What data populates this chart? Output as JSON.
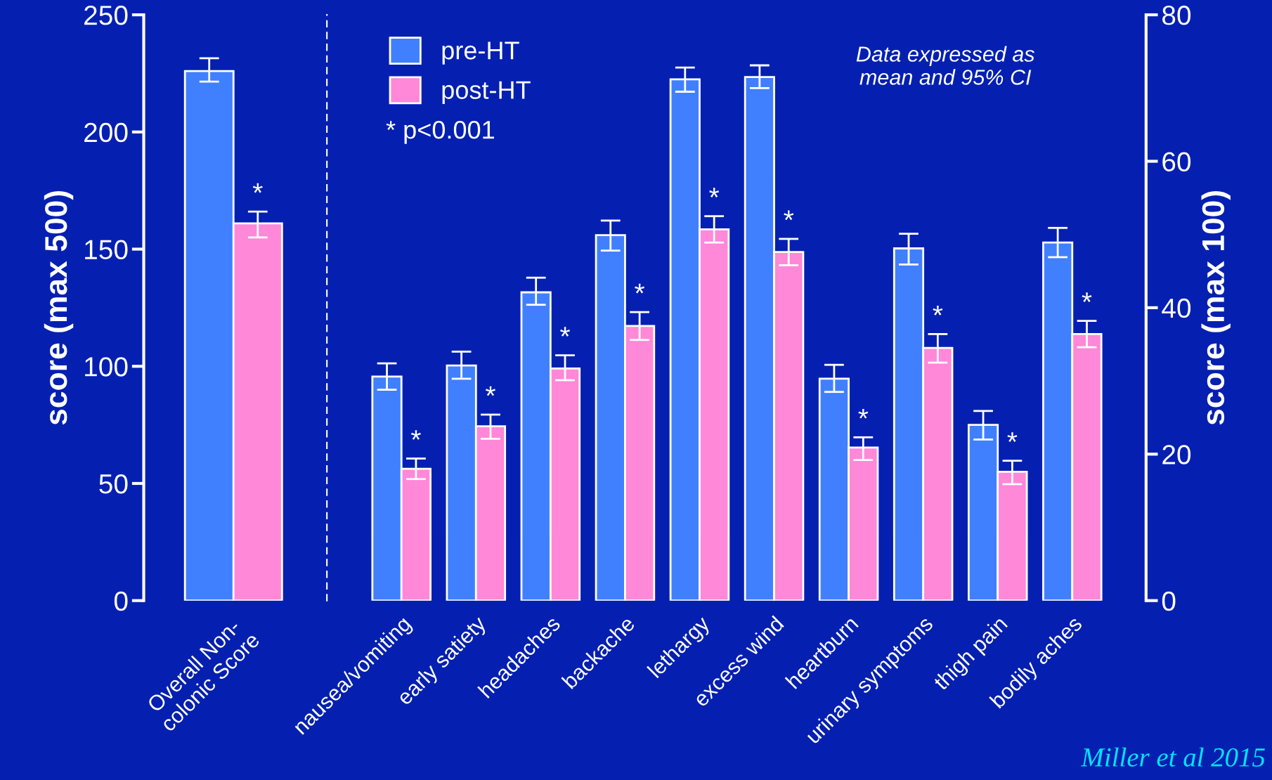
{
  "chart_data": [
    {
      "type": "bar",
      "categories": [
        "Overall Non-\ncolonic Score"
      ],
      "series": [
        {
          "name": "pre-HT",
          "color": "#4080ff",
          "values": [
            226
          ],
          "errors": [
            [
              221.5,
              231.5
            ]
          ]
        },
        {
          "name": "post-HT",
          "color": "#ff88d8",
          "values": [
            161
          ],
          "errors": [
            [
              155,
              166
            ]
          ],
          "value_labels": [
            "*"
          ]
        }
      ],
      "ylabel": "score (max 500)",
      "ylim": [
        0,
        250
      ],
      "yticks": [
        0,
        50,
        100,
        150,
        200,
        250
      ],
      "grid": false,
      "legend": "right"
    },
    {
      "type": "bar",
      "categories": [
        "nausea/vomiting",
        "early satiety",
        "headaches",
        "backache",
        "lethargy",
        "excess wind",
        "heartburn",
        "urinary symptoms",
        "thigh pain",
        "bodily aches"
      ],
      "series": [
        {
          "axis": "y2",
          "color": "#4080ff",
          "values": [
            30.6,
            32.1,
            42.1,
            49.9,
            71.2,
            71.5,
            30.3,
            48.1,
            24.0,
            48.9
          ],
          "errors": [
            [
              28.8,
              32.4
            ],
            [
              30.3,
              34.0
            ],
            [
              40.4,
              44.1
            ],
            [
              47.8,
              51.9
            ],
            [
              69.5,
              72.8
            ],
            [
              70.0,
              73.1
            ],
            [
              28.5,
              32.2
            ],
            [
              45.9,
              50.1
            ],
            [
              22.0,
              25.9
            ],
            [
              46.9,
              50.9
            ]
          ]
        },
        {
          "axis": "y2",
          "color": "#ff88d8",
          "values": [
            18.0,
            23.8,
            31.7,
            37.5,
            50.7,
            47.6,
            20.9,
            34.5,
            17.6,
            36.4
          ],
          "errors": [
            [
              16.6,
              19.4
            ],
            [
              22.1,
              25.4
            ],
            [
              30.1,
              33.5
            ],
            [
              35.6,
              39.4
            ],
            [
              48.9,
              52.5
            ],
            [
              45.8,
              49.4
            ],
            [
              19.2,
              22.3
            ],
            [
              32.5,
              36.4
            ],
            [
              15.9,
              19.1
            ],
            [
              34.6,
              38.2
            ]
          ],
          "value_labels": [
            "*",
            "*",
            "*",
            "*",
            "*",
            "*",
            "*",
            "*",
            "*",
            "*"
          ]
        }
      ],
      "y2label": "score (max 100)",
      "y2lim": [
        0,
        80
      ],
      "y2ticks": [
        0,
        20,
        40,
        60,
        80
      ],
      "grid": false,
      "annotations": [
        "* p<0.001",
        "Data expressed as\nmean and 95% CI",
        "Miller et al 2015"
      ]
    }
  ]
}
